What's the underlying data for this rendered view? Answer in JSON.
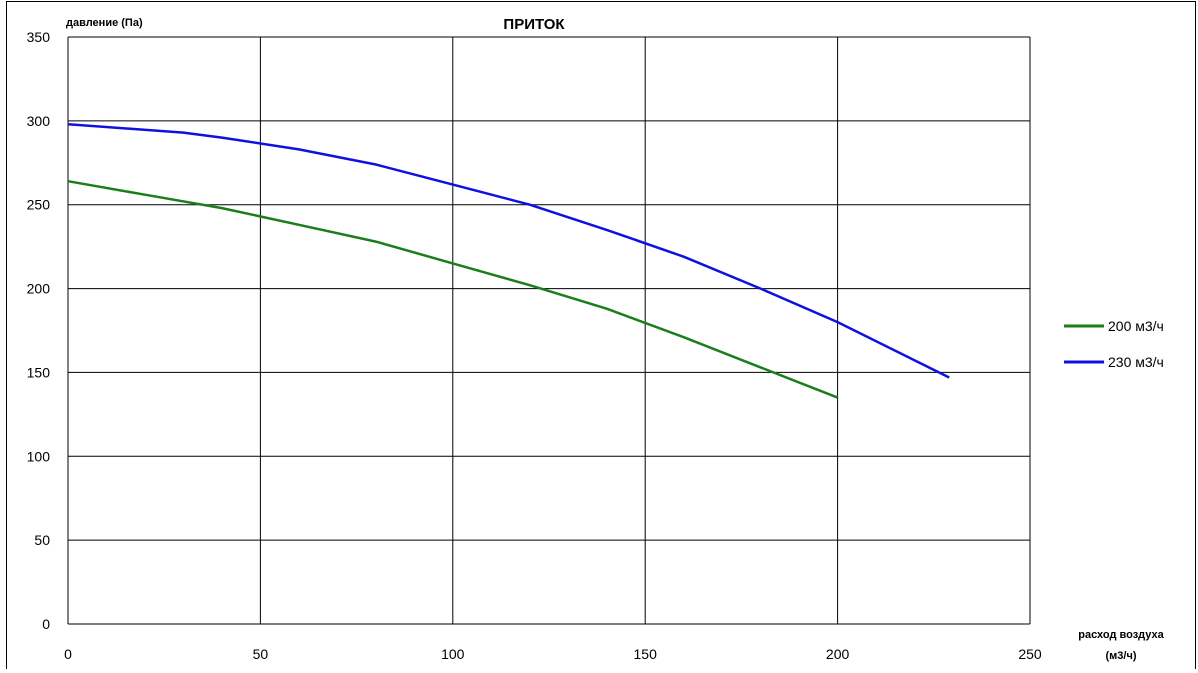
{
  "chart_data": {
    "type": "line",
    "title": "ПРИТОК",
    "ylabel": "давление (Па)",
    "xlabel_line1": "расход воздуха",
    "xlabel_line2": "(м3/ч)",
    "xlim": [
      0,
      250
    ],
    "ylim": [
      0,
      350
    ],
    "xticks": [
      0,
      50,
      100,
      150,
      200,
      250
    ],
    "yticks": [
      0,
      50,
      100,
      150,
      200,
      250,
      300,
      350
    ],
    "grid": true,
    "legend_position": "right",
    "series": [
      {
        "name": "200 м3/ч",
        "color": "#1a7f1a",
        "x": [
          0,
          20,
          40,
          60,
          80,
          100,
          120,
          140,
          160,
          180,
          200
        ],
        "y": [
          264,
          256,
          248,
          238,
          228,
          215,
          202,
          188,
          171,
          153,
          135
        ]
      },
      {
        "name": "230 м3/ч",
        "color": "#1010e0",
        "x": [
          0,
          30,
          40,
          60,
          80,
          100,
          120,
          140,
          160,
          180,
          200,
          229
        ],
        "y": [
          298,
          293,
          290,
          283,
          274,
          262,
          250,
          235,
          219,
          200,
          180,
          147
        ]
      }
    ]
  }
}
